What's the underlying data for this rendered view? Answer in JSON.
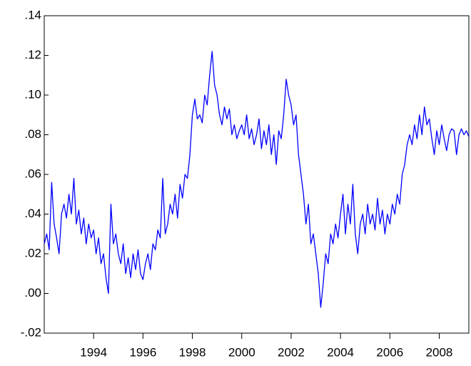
{
  "chart_data": {
    "type": "line",
    "color": "#0000ff",
    "x": [
      1992.0,
      1992.1,
      1992.2,
      1992.3,
      1992.4,
      1992.5,
      1992.6,
      1992.7,
      1992.8,
      1992.9,
      1993.0,
      1993.1,
      1993.2,
      1993.3,
      1993.4,
      1993.5,
      1993.6,
      1993.7,
      1993.8,
      1993.9,
      1994.0,
      1994.1,
      1994.2,
      1994.3,
      1994.4,
      1994.5,
      1994.6,
      1994.7,
      1994.8,
      1994.9,
      1995.0,
      1995.1,
      1995.2,
      1995.3,
      1995.4,
      1995.5,
      1995.6,
      1995.7,
      1995.8,
      1995.9,
      1996.0,
      1996.1,
      1996.2,
      1996.3,
      1996.4,
      1996.5,
      1996.6,
      1996.7,
      1996.8,
      1996.9,
      1997.0,
      1997.1,
      1997.2,
      1997.3,
      1997.4,
      1997.5,
      1997.6,
      1997.7,
      1997.8,
      1997.9,
      1998.0,
      1998.1,
      1998.2,
      1998.3,
      1998.4,
      1998.5,
      1998.6,
      1998.7,
      1998.8,
      1998.9,
      1999.0,
      1999.1,
      1999.2,
      1999.3,
      1999.4,
      1999.5,
      1999.6,
      1999.7,
      1999.8,
      1999.9,
      2000.0,
      2000.1,
      2000.2,
      2000.3,
      2000.4,
      2000.5,
      2000.6,
      2000.7,
      2000.8,
      2000.9,
      2001.0,
      2001.1,
      2001.2,
      2001.3,
      2001.4,
      2001.5,
      2001.6,
      2001.7,
      2001.8,
      2001.9,
      2002.0,
      2002.1,
      2002.2,
      2002.3,
      2002.4,
      2002.5,
      2002.6,
      2002.7,
      2002.8,
      2002.9,
      2003.0,
      2003.1,
      2003.2,
      2003.3,
      2003.4,
      2003.5,
      2003.6,
      2003.7,
      2003.8,
      2003.9,
      2004.0,
      2004.1,
      2004.2,
      2004.3,
      2004.4,
      2004.5,
      2004.6,
      2004.7,
      2004.8,
      2004.9,
      2005.0,
      2005.1,
      2005.2,
      2005.3,
      2005.4,
      2005.5,
      2005.6,
      2005.7,
      2005.8,
      2005.9,
      2006.0,
      2006.1,
      2006.2,
      2006.3,
      2006.4,
      2006.5,
      2006.6,
      2006.7,
      2006.8,
      2006.9,
      2007.0,
      2007.1,
      2007.2,
      2007.3,
      2007.4,
      2007.5,
      2007.6,
      2007.7,
      2007.8,
      2007.9,
      2008.0,
      2008.1,
      2008.2,
      2008.3,
      2008.4,
      2008.5,
      2008.6,
      2008.7,
      2008.8,
      2008.9,
      2009.0,
      2009.1,
      2009.2
    ],
    "values": [
      0.025,
      0.03,
      0.022,
      0.056,
      0.035,
      0.028,
      0.02,
      0.04,
      0.045,
      0.038,
      0.05,
      0.04,
      0.058,
      0.035,
      0.042,
      0.03,
      0.038,
      0.025,
      0.035,
      0.028,
      0.032,
      0.02,
      0.028,
      0.015,
      0.02,
      0.008,
      0.0,
      0.045,
      0.025,
      0.03,
      0.02,
      0.015,
      0.025,
      0.01,
      0.018,
      0.008,
      0.02,
      0.012,
      0.022,
      0.01,
      0.007,
      0.015,
      0.02,
      0.012,
      0.025,
      0.022,
      0.032,
      0.028,
      0.058,
      0.03,
      0.035,
      0.045,
      0.04,
      0.05,
      0.038,
      0.055,
      0.048,
      0.06,
      0.058,
      0.07,
      0.09,
      0.098,
      0.088,
      0.09,
      0.086,
      0.1,
      0.095,
      0.11,
      0.122,
      0.105,
      0.1,
      0.09,
      0.085,
      0.094,
      0.088,
      0.093,
      0.08,
      0.085,
      0.078,
      0.082,
      0.085,
      0.08,
      0.09,
      0.078,
      0.083,
      0.075,
      0.08,
      0.088,
      0.073,
      0.082,
      0.075,
      0.085,
      0.07,
      0.08,
      0.065,
      0.082,
      0.078,
      0.09,
      0.108,
      0.1,
      0.095,
      0.085,
      0.09,
      0.07,
      0.06,
      0.05,
      0.035,
      0.045,
      0.025,
      0.03,
      0.02,
      0.01,
      -0.007,
      0.005,
      0.02,
      0.015,
      0.03,
      0.025,
      0.035,
      0.028,
      0.04,
      0.05,
      0.03,
      0.045,
      0.035,
      0.055,
      0.03,
      0.02,
      0.035,
      0.04,
      0.03,
      0.045,
      0.035,
      0.04,
      0.032,
      0.048,
      0.035,
      0.042,
      0.03,
      0.04,
      0.035,
      0.045,
      0.04,
      0.05,
      0.045,
      0.06,
      0.065,
      0.075,
      0.08,
      0.075,
      0.085,
      0.078,
      0.09,
      0.08,
      0.094,
      0.085,
      0.088,
      0.078,
      0.07,
      0.082,
      0.075,
      0.085,
      0.078,
      0.072,
      0.08,
      0.083,
      0.082,
      0.07,
      0.08,
      0.083,
      0.08,
      0.082,
      0.079
    ],
    "xlim": [
      1992.0,
      2009.2
    ],
    "xticks": [
      1994,
      1996,
      1998,
      2000,
      2002,
      2004,
      2006,
      2008
    ],
    "ylim": [
      -0.02,
      0.14
    ],
    "yticks": [
      {
        "value": -0.02,
        "label": "-.02"
      },
      {
        "value": 0,
        "label": ".00"
      },
      {
        "value": 0.02,
        "label": ".02"
      },
      {
        "value": 0.04,
        "label": ".04"
      },
      {
        "value": 0.06,
        "label": ".06"
      },
      {
        "value": 0.08,
        "label": ".08"
      },
      {
        "value": 0.1,
        "label": ".10"
      },
      {
        "value": 0.12,
        "label": ".12"
      },
      {
        "value": 0.14,
        "label": ".14"
      }
    ]
  }
}
